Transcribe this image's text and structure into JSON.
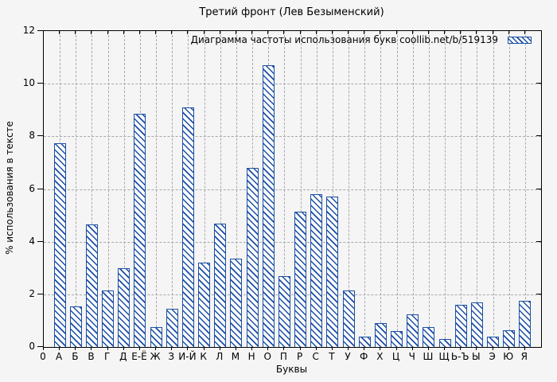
{
  "title": "Третий фронт (Лев Безыменский)",
  "legend": {
    "label": "Диаграмма частоты использования букв  coollib.net/b/519139",
    "swatch": "blue-hatched-box"
  },
  "axes": {
    "y_label": "% использования в тексте",
    "x_label": "Буквы",
    "origin_label": "0",
    "y_ticks": [
      0,
      2,
      4,
      6,
      8,
      10,
      12
    ]
  },
  "colors": {
    "bar_blue": "#1b4fa5",
    "background": "#f5f5f5",
    "grid": "#a9a9a9",
    "axis": "#000000"
  },
  "chart_data": {
    "type": "bar",
    "title": "Третий фронт (Лев Безыменский)",
    "xlabel": "Буквы",
    "ylabel": "% использования в тексте",
    "ylim": [
      0,
      12
    ],
    "grid": true,
    "legend_position": "top-right-inside",
    "legend_label": "Диаграмма частоты использования букв  coollib.net/b/519139",
    "bar_style": "blue diagonal hatch on white",
    "categories": [
      "А",
      "Б",
      "В",
      "Г",
      "Д",
      "Е-Ё",
      "Ж",
      "З",
      "И-Й",
      "К",
      "Л",
      "М",
      "Н",
      "О",
      "П",
      "Р",
      "С",
      "Т",
      "У",
      "Ф",
      "Х",
      "Ц",
      "Ч",
      "Ш",
      "Щ",
      "Ь-Ъ",
      "Ы",
      "Э",
      "Ю",
      "Я"
    ],
    "values": [
      7.75,
      1.55,
      4.65,
      2.15,
      3.0,
      8.85,
      0.75,
      1.45,
      9.1,
      3.2,
      4.7,
      3.35,
      6.8,
      10.7,
      2.7,
      5.15,
      5.8,
      5.7,
      2.15,
      0.4,
      0.9,
      0.6,
      1.25,
      0.75,
      0.3,
      1.6,
      1.7,
      0.4,
      0.65,
      1.75
    ]
  }
}
